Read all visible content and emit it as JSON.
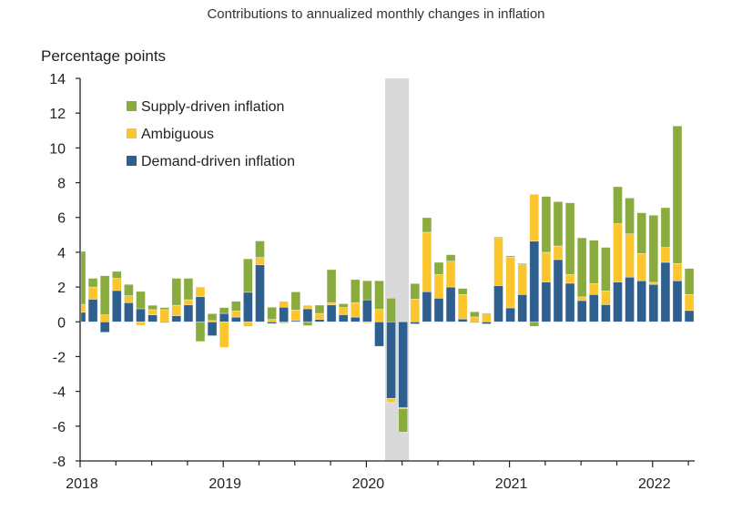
{
  "chart_data": {
    "type": "bar",
    "stacked": true,
    "title": "Contributions to annualized monthly changes in inflation",
    "ylabel": "Percentage points",
    "xlabel": "",
    "ylim": [
      -8,
      14
    ],
    "yticks": [
      "14",
      "12",
      "10",
      "8",
      "6",
      "4",
      "2",
      "0",
      "-2",
      "-4",
      "-6",
      "-8"
    ],
    "xtick_labels": [
      "2018",
      "2019",
      "2020",
      "2021",
      "2022"
    ],
    "legend_position": "top-left",
    "grid": false,
    "shaded_period": [
      "2020-03",
      "2020-04"
    ],
    "categories": [
      "2018-01",
      "2018-02",
      "2018-03",
      "2018-04",
      "2018-05",
      "2018-06",
      "2018-07",
      "2018-08",
      "2018-09",
      "2018-10",
      "2018-11",
      "2018-12",
      "2019-01",
      "2019-02",
      "2019-03",
      "2019-04",
      "2019-05",
      "2019-06",
      "2019-07",
      "2019-08",
      "2019-09",
      "2019-10",
      "2019-11",
      "2019-12",
      "2020-01",
      "2020-02",
      "2020-03",
      "2020-04",
      "2020-05",
      "2020-06",
      "2020-07",
      "2020-08",
      "2020-09",
      "2020-10",
      "2020-11",
      "2020-12",
      "2021-01",
      "2021-02",
      "2021-03",
      "2021-04",
      "2021-05",
      "2021-06",
      "2021-07",
      "2021-08",
      "2021-09",
      "2021-10",
      "2021-11",
      "2021-12",
      "2022-01",
      "2022-02",
      "2022-03",
      "2022-04"
    ],
    "series": [
      {
        "name": "Demand-driven inflation",
        "color": "#2e5f8e",
        "values": [
          0.55,
          1.3,
          -0.6,
          1.8,
          1.1,
          0.75,
          0.4,
          -0.05,
          0.35,
          0.97,
          1.45,
          -0.8,
          0.48,
          0.27,
          1.7,
          3.28,
          -0.1,
          0.84,
          0.07,
          0.75,
          0.14,
          0.97,
          0.41,
          0.27,
          1.26,
          -1.41,
          -4.4,
          -4.94,
          -0.12,
          1.73,
          1.36,
          2.0,
          0.16,
          -0.05,
          -0.12,
          2.08,
          0.8,
          1.57,
          4.64,
          2.29,
          3.58,
          2.22,
          1.22,
          1.57,
          0.99,
          2.29,
          2.57,
          2.36,
          2.15,
          3.42,
          2.36,
          0.65
        ]
      },
      {
        "name": "Ambiguous",
        "color": "#fbc52d",
        "values": [
          0.45,
          0.7,
          0.4,
          0.7,
          0.4,
          -0.2,
          0.3,
          0.7,
          0.6,
          0.3,
          0.55,
          0.07,
          -1.47,
          0.35,
          -0.27,
          0.42,
          0.14,
          0.34,
          0.61,
          0.2,
          0.34,
          0.13,
          0.41,
          0.83,
          -0.07,
          0.72,
          -0.23,
          -0.05,
          1.31,
          3.42,
          1.36,
          1.49,
          1.41,
          0.28,
          0.45,
          2.72,
          2.92,
          1.71,
          2.69,
          1.71,
          0.78,
          0.5,
          0.21,
          0.63,
          0.79,
          3.35,
          2.49,
          1.57,
          0.12,
          0.86,
          0.99,
          0.92
        ]
      },
      {
        "name": "Supply-driven inflation",
        "color": "#8aac3e",
        "values": [
          3.05,
          0.5,
          2.25,
          0.4,
          0.65,
          1.0,
          0.25,
          0.12,
          1.55,
          1.23,
          -1.13,
          0.4,
          0.34,
          0.56,
          1.92,
          0.95,
          0.7,
          -0.07,
          1.04,
          -0.22,
          0.48,
          1.9,
          0.22,
          1.33,
          1.1,
          1.64,
          1.36,
          -1.35,
          0.89,
          0.84,
          0.7,
          0.37,
          0.35,
          0.3,
          0.05,
          0.07,
          0.07,
          0.07,
          -0.26,
          3.21,
          2.55,
          4.12,
          3.4,
          2.49,
          2.5,
          2.13,
          2.06,
          2.34,
          3.86,
          2.28,
          7.91,
          1.5
        ]
      }
    ],
    "legend_order": [
      "Supply-driven inflation",
      "Ambiguous",
      "Demand-driven inflation"
    ],
    "shading_color": "#d9d9d9"
  }
}
